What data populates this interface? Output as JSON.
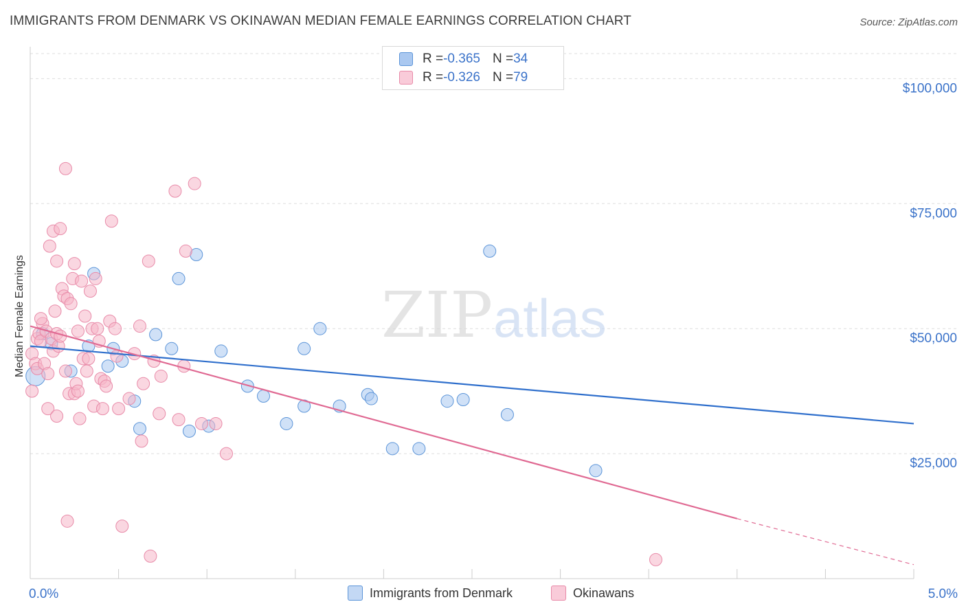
{
  "title": "IMMIGRANTS FROM DENMARK VS OKINAWAN MEDIAN FEMALE EARNINGS CORRELATION CHART",
  "source": "Source: ZipAtlas.com",
  "watermark": {
    "zip": "ZIP",
    "atlas": "atlas"
  },
  "legend_top": {
    "rows": [
      {
        "r_label": "R = ",
        "r_value": "-0.365",
        "n_label": "N = ",
        "n_value": "34",
        "color": "#aac8f0"
      },
      {
        "r_label": "R = ",
        "r_value": "-0.326",
        "n_label": "N = ",
        "n_value": "79",
        "color": "#f5b6c9"
      }
    ]
  },
  "chart_data": {
    "type": "scatter",
    "title": "IMMIGRANTS FROM DENMARK VS OKINAWAN MEDIAN FEMALE EARNINGS CORRELATION CHART",
    "xlabel": "",
    "ylabel": "Median Female Earnings",
    "xlim": [
      0,
      5
    ],
    "ylim": [
      0,
      105000
    ],
    "x_tick_labels": [
      "0.0%",
      "5.0%"
    ],
    "y_ticks": [
      25000,
      50000,
      75000,
      100000
    ],
    "y_tick_labels": [
      "$25,000",
      "$50,000",
      "$75,000",
      "$100,000"
    ],
    "grid": true,
    "legend_position": "bottom",
    "series": [
      {
        "name": "Immigrants from Denmark",
        "color": "#5b94d8",
        "fill": "#aac8f0",
        "trend": {
          "x": [
            0,
            5
          ],
          "y": [
            46500,
            31000
          ],
          "color": "#2f6fcc"
        },
        "points": [
          [
            0.03,
            40500
          ],
          [
            0.12,
            47000
          ],
          [
            0.23,
            41500
          ],
          [
            0.33,
            46500
          ],
          [
            0.36,
            61000
          ],
          [
            0.44,
            42500
          ],
          [
            0.47,
            46000
          ],
          [
            0.52,
            43500
          ],
          [
            0.59,
            35500
          ],
          [
            0.62,
            30000
          ],
          [
            0.71,
            48800
          ],
          [
            0.8,
            46000
          ],
          [
            0.84,
            60000
          ],
          [
            0.9,
            29500
          ],
          [
            0.94,
            64800
          ],
          [
            1.01,
            30500
          ],
          [
            1.08,
            45500
          ],
          [
            1.23,
            38500
          ],
          [
            1.32,
            36500
          ],
          [
            1.45,
            31000
          ],
          [
            1.55,
            34500
          ],
          [
            1.55,
            46000
          ],
          [
            1.64,
            50000
          ],
          [
            1.75,
            34500
          ],
          [
            1.91,
            36800
          ],
          [
            1.93,
            36000
          ],
          [
            2.05,
            26000
          ],
          [
            2.2,
            26000
          ],
          [
            2.36,
            35500
          ],
          [
            2.45,
            35800
          ],
          [
            2.6,
            65500
          ],
          [
            2.7,
            32800
          ],
          [
            3.2,
            21600
          ],
          [
            0.07,
            49000
          ]
        ]
      },
      {
        "name": "Okinawans",
        "color": "#e88aa8",
        "fill": "#f5b6c9",
        "trend": {
          "x": [
            0,
            4.0
          ],
          "y": [
            50500,
            12000
          ],
          "dash_x": [
            4.0,
            5
          ],
          "dash_y": [
            12000,
            2800
          ],
          "color": "#e06a93"
        },
        "points": [
          [
            0.01,
            37500
          ],
          [
            0.01,
            45000
          ],
          [
            0.03,
            43000
          ],
          [
            0.04,
            48000
          ],
          [
            0.04,
            42000
          ],
          [
            0.05,
            49000
          ],
          [
            0.06,
            47500
          ],
          [
            0.07,
            51000
          ],
          [
            0.08,
            43000
          ],
          [
            0.09,
            49500
          ],
          [
            0.1,
            41000
          ],
          [
            0.1,
            34000
          ],
          [
            0.11,
            66500
          ],
          [
            0.12,
            48000
          ],
          [
            0.13,
            69500
          ],
          [
            0.13,
            45500
          ],
          [
            0.14,
            53500
          ],
          [
            0.15,
            63500
          ],
          [
            0.15,
            32500
          ],
          [
            0.16,
            46500
          ],
          [
            0.17,
            70000
          ],
          [
            0.18,
            58000
          ],
          [
            0.19,
            56500
          ],
          [
            0.2,
            82000
          ],
          [
            0.2,
            41500
          ],
          [
            0.21,
            56000
          ],
          [
            0.22,
            37000
          ],
          [
            0.23,
            55000
          ],
          [
            0.24,
            60000
          ],
          [
            0.25,
            63000
          ],
          [
            0.25,
            37000
          ],
          [
            0.26,
            39000
          ],
          [
            0.27,
            49500
          ],
          [
            0.28,
            32000
          ],
          [
            0.29,
            59500
          ],
          [
            0.3,
            44000
          ],
          [
            0.31,
            52500
          ],
          [
            0.32,
            41500
          ],
          [
            0.33,
            44000
          ],
          [
            0.34,
            57500
          ],
          [
            0.35,
            50000
          ],
          [
            0.36,
            34500
          ],
          [
            0.37,
            60000
          ],
          [
            0.38,
            50000
          ],
          [
            0.39,
            47500
          ],
          [
            0.4,
            40000
          ],
          [
            0.41,
            34000
          ],
          [
            0.42,
            39500
          ],
          [
            0.43,
            38500
          ],
          [
            0.45,
            51500
          ],
          [
            0.46,
            71500
          ],
          [
            0.48,
            50000
          ],
          [
            0.49,
            44500
          ],
          [
            0.5,
            34000
          ],
          [
            0.52,
            10500
          ],
          [
            0.56,
            36000
          ],
          [
            0.59,
            45000
          ],
          [
            0.62,
            50500
          ],
          [
            0.63,
            27500
          ],
          [
            0.64,
            39000
          ],
          [
            0.67,
            63500
          ],
          [
            0.68,
            4500
          ],
          [
            0.7,
            43500
          ],
          [
            0.73,
            33000
          ],
          [
            0.74,
            40500
          ],
          [
            0.82,
            77500
          ],
          [
            0.84,
            31800
          ],
          [
            0.87,
            42500
          ],
          [
            0.88,
            65500
          ],
          [
            0.93,
            79000
          ],
          [
            0.97,
            31000
          ],
          [
            1.05,
            31000
          ],
          [
            1.11,
            25000
          ],
          [
            0.21,
            11500
          ],
          [
            3.54,
            3800
          ],
          [
            0.06,
            52000
          ],
          [
            0.15,
            49000
          ],
          [
            0.27,
            37500
          ],
          [
            0.17,
            48500
          ]
        ]
      }
    ]
  },
  "bottom_legend": [
    {
      "label": "Immigrants from Denmark",
      "color": "#aac8f0",
      "border": "#5b94d8"
    },
    {
      "label": "Okinawans",
      "color": "#f5b6c9",
      "border": "#e88aa8"
    }
  ]
}
